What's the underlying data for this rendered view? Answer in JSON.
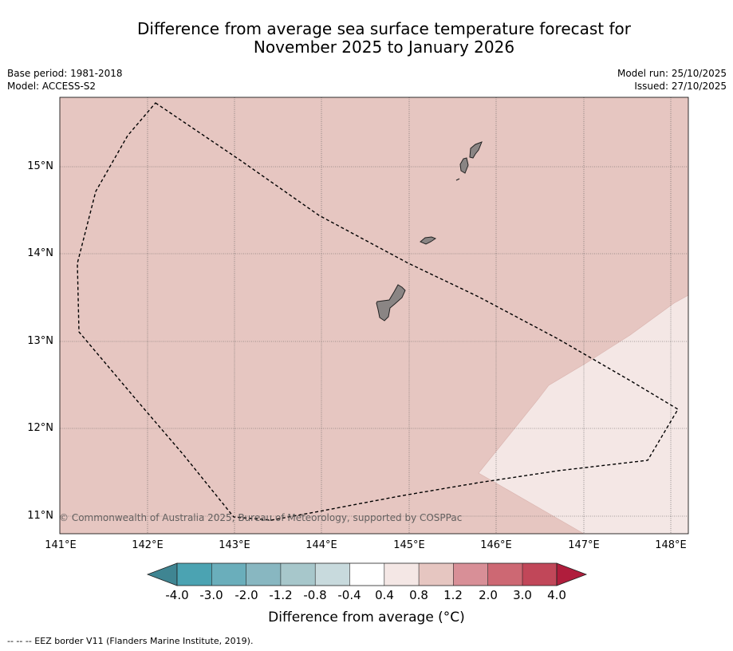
{
  "title": {
    "line1": "Difference from average sea surface temperature forecast for",
    "line2": "November 2025 to January 2026"
  },
  "meta": {
    "base_period": "Base period: 1981-2018",
    "model": "Model: ACCESS-S2",
    "model_run": "Model run: 25/10/2025",
    "issued": "Issued: 27/10/2025"
  },
  "map": {
    "lon_labels": [
      "141°E",
      "142°E",
      "143°E",
      "144°E",
      "145°E",
      "146°E",
      "147°E",
      "148°E"
    ],
    "lat_labels": [
      "15°N",
      "14°N",
      "13°N",
      "12°N",
      "11°N"
    ],
    "credit": "© Commonwealth of Australia 2025, Bureau of Meteorology, supported by COSPPac",
    "eez_label": "EEZ border",
    "fill_colors": {
      "ocean_main": "#e6c6c1",
      "ocean_low": "#f4e7e5",
      "land": "#8a8584"
    }
  },
  "colorbar": {
    "labels": [
      "-4.0",
      "-3.0",
      "-2.0",
      "-1.2",
      "-0.8",
      "-0.4",
      "0.4",
      "0.8",
      "1.2",
      "2.0",
      "3.0",
      "4.0"
    ],
    "colors": [
      "#3f8592",
      "#4ba3b2",
      "#6aaebb",
      "#88b7c1",
      "#a7c7cb",
      "#c8dadd",
      "#ffffff",
      "#f4e7e5",
      "#e6c6c1",
      "#d88f97",
      "#cd6873",
      "#c14759",
      "#b01d3c"
    ],
    "title": "Difference from average (°C)"
  },
  "footnote": "--  --  -- EEZ border V11 (Flanders Marine Institute, 2019)."
}
